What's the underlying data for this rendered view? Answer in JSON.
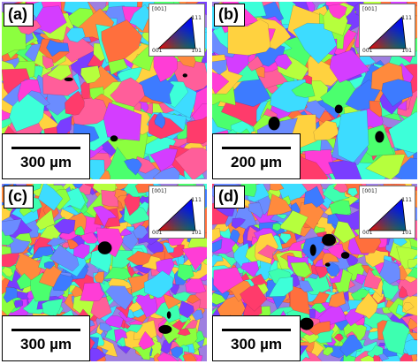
{
  "panels": [
    {
      "label": "(a)",
      "scale": "300 µm",
      "seed": 11
    },
    {
      "label": "(b)",
      "scale": "200 µm",
      "seed": 37
    },
    {
      "label": "(c)",
      "scale": "300 µm",
      "seed": 73
    },
    {
      "label": "(d)",
      "scale": "300 µm",
      "seed": 91
    }
  ],
  "ipf": {
    "top": "[001]",
    "upper_right": "111",
    "lower_left": "001",
    "lower_right": "101"
  },
  "palette": [
    "#ff3b6b",
    "#ff8a3d",
    "#ffd23f",
    "#8cff3f",
    "#3dffb0",
    "#3ddcff",
    "#3d7bff",
    "#7a3dff",
    "#d43dff",
    "#ff3dd6",
    "#ff5e9a",
    "#4bff6e",
    "#b6ff3d",
    "#ff6f3d",
    "#3dffd9",
    "#6b8cff"
  ]
}
